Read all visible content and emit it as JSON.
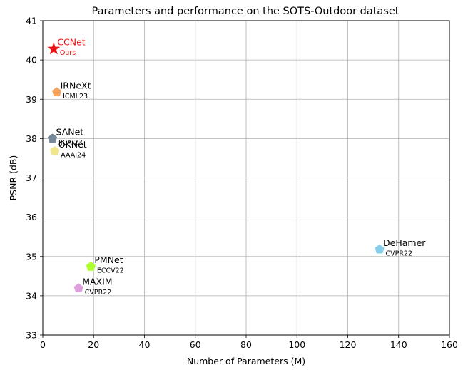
{
  "chart_data": {
    "type": "scatter",
    "title": "Parameters and performance on the SOTS-Outdoor dataset",
    "xlabel": "Number of Parameters (M)",
    "ylabel": "PSNR  (dB)",
    "xlim": [
      0,
      160
    ],
    "ylim": [
      33,
      41
    ],
    "xticks": [
      0,
      20,
      40,
      60,
      80,
      100,
      120,
      140,
      160
    ],
    "yticks": [
      33,
      34,
      35,
      36,
      37,
      38,
      39,
      40,
      41
    ],
    "grid": true,
    "points": [
      {
        "name": "CCNet",
        "venue": "Ours",
        "x": 4.3,
        "y": 40.28,
        "marker": "star",
        "color": "#ee1111",
        "label_color": "#ee1111"
      },
      {
        "name": "IRNeXt",
        "venue": "ICML23",
        "x": 5.5,
        "y": 39.18,
        "marker": "pentagon",
        "color": "#f4a460",
        "label_color": "#000000"
      },
      {
        "name": "SANet",
        "venue": "IJCAI23",
        "x": 3.8,
        "y": 38.0,
        "marker": "pentagon",
        "color": "#778899",
        "label_color": "#000000"
      },
      {
        "name": "OKNet",
        "venue": "AAAI24",
        "x": 4.7,
        "y": 37.68,
        "marker": "pentagon",
        "color": "#f0e68c",
        "label_color": "#000000"
      },
      {
        "name": "DeHamer",
        "venue": "CVPR22",
        "x": 132.5,
        "y": 35.18,
        "marker": "pentagon",
        "color": "#87ceeb",
        "label_color": "#000000"
      },
      {
        "name": "PMNet",
        "venue": "ECCV22",
        "x": 18.9,
        "y": 34.74,
        "marker": "pentagon",
        "color": "#adff2f",
        "label_color": "#000000"
      },
      {
        "name": "MAXIM",
        "venue": "CVPR22",
        "x": 14.1,
        "y": 34.19,
        "marker": "pentagon",
        "color": "#dda0dd",
        "label_color": "#000000"
      }
    ]
  }
}
